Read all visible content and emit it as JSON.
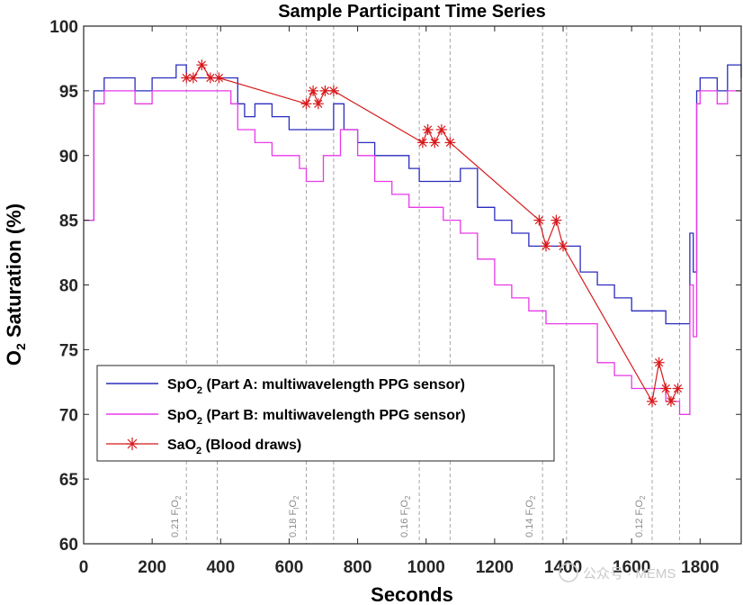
{
  "chart_data": {
    "type": "line",
    "title": "Sample Participant Time Series",
    "xlabel": "Seconds",
    "ylabel_main": "O",
    "ylabel_sub": "2",
    "ylabel_rest": " Saturation (%)",
    "xlim": [
      0,
      1920
    ],
    "ylim": [
      60,
      100
    ],
    "xticks": [
      0,
      200,
      400,
      600,
      800,
      1000,
      1200,
      1400,
      1600,
      1800
    ],
    "yticks": [
      60,
      65,
      70,
      75,
      80,
      85,
      90,
      95,
      100
    ],
    "grid": false,
    "legend_position": "lower-left",
    "fio2_lines": [
      300,
      390,
      650,
      730,
      980,
      1070,
      1340,
      1410,
      1660,
      1740
    ],
    "annotations": [
      {
        "text": "0.21 F",
        "sub": "I",
        "text2": "O",
        "sub2": "2",
        "x": 265
      },
      {
        "text": "0.18 F",
        "sub": "I",
        "text2": "O",
        "sub2": "2",
        "x": 610
      },
      {
        "text": "0.16 F",
        "sub": "I",
        "text2": "O",
        "sub2": "2",
        "x": 935
      },
      {
        "text": "0.14 F",
        "sub": "I",
        "text2": "O",
        "sub2": "2",
        "x": 1300
      },
      {
        "text": "0.12 F",
        "sub": "I",
        "text2": "O",
        "sub2": "2",
        "x": 1620
      }
    ],
    "series": [
      {
        "name": "SpO2 (Part A: multiwavelength PPG sensor)",
        "legend_main": "SpO",
        "legend_sub": "2",
        "legend_rest": " (Part A: multiwavelength PPG sensor)",
        "color": "#2b2bbf",
        "x": [
          0,
          20,
          30,
          60,
          100,
          150,
          200,
          250,
          270,
          300,
          350,
          400,
          430,
          450,
          470,
          500,
          550,
          600,
          650,
          700,
          730,
          760,
          800,
          850,
          900,
          950,
          980,
          1000,
          1050,
          1100,
          1150,
          1200,
          1250,
          1300,
          1330,
          1350,
          1400,
          1450,
          1500,
          1550,
          1600,
          1650,
          1700,
          1740,
          1760,
          1770,
          1780,
          1790,
          1800,
          1850,
          1880,
          1920
        ],
        "y": [
          85,
          85,
          95,
          96,
          96,
          95,
          96,
          96,
          97,
          96,
          96,
          96,
          96,
          94,
          93,
          94,
          93,
          92,
          92,
          92,
          94,
          92,
          91,
          90,
          90,
          89,
          88,
          88,
          88,
          89,
          86,
          85,
          84,
          83,
          83,
          83,
          83,
          81,
          80,
          79,
          78,
          78,
          77,
          77,
          77,
          84,
          81,
          95,
          96,
          95,
          97,
          96
        ]
      },
      {
        "name": "SpO2 (Part B: multiwavelength PPG sensor)",
        "legend_main": "SpO",
        "legend_sub": "2",
        "legend_rest": " (Part B: multiwavelength PPG sensor)",
        "color": "#e83ae8",
        "x": [
          0,
          20,
          30,
          60,
          100,
          150,
          200,
          250,
          300,
          350,
          400,
          430,
          450,
          500,
          550,
          600,
          630,
          650,
          700,
          750,
          800,
          850,
          900,
          950,
          1000,
          1050,
          1100,
          1150,
          1200,
          1250,
          1300,
          1350,
          1400,
          1450,
          1500,
          1550,
          1600,
          1650,
          1700,
          1740,
          1760,
          1770,
          1780,
          1790,
          1800,
          1850,
          1880,
          1920
        ],
        "y": [
          85,
          85,
          94,
          95,
          95,
          94,
          95,
          95,
          95,
          95,
          95,
          94,
          92,
          91,
          90,
          90,
          89,
          88,
          90,
          92,
          90,
          88,
          87,
          86,
          86,
          85,
          84,
          82,
          80,
          79,
          78,
          77,
          77,
          77,
          74,
          73,
          72,
          72,
          71,
          70,
          70,
          80,
          76,
          94,
          95,
          94,
          95,
          95
        ]
      },
      {
        "name": "SaO2 (Blood draws)",
        "legend_main": "SaO",
        "legend_sub": "2",
        "legend_rest": " (Blood draws)",
        "color": "#d7191c",
        "x": [
          300,
          320,
          345,
          370,
          395,
          650,
          670,
          685,
          705,
          730,
          990,
          1005,
          1025,
          1045,
          1070,
          1330,
          1350,
          1380,
          1400,
          1660,
          1680,
          1700,
          1715,
          1735
        ],
        "y": [
          96,
          96,
          97,
          96,
          96,
          94,
          95,
          94,
          95,
          95,
          91,
          92,
          91,
          92,
          91,
          85,
          83,
          85,
          83,
          71,
          74,
          72,
          71,
          72
        ]
      }
    ]
  },
  "watermark": "公众号 · MEMS"
}
